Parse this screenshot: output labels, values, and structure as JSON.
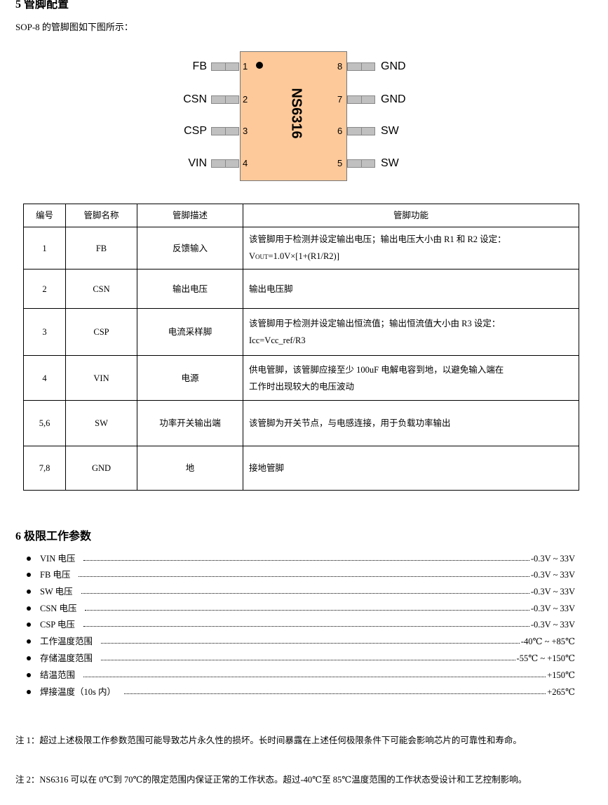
{
  "section5": {
    "title": "5 管脚配置",
    "intro": "SOP-8 的管脚图如下图所示："
  },
  "chip": {
    "name": "NS6316",
    "body_color": "#fdc99a",
    "left_pins": [
      {
        "num": "1",
        "label": "FB"
      },
      {
        "num": "2",
        "label": "CSN"
      },
      {
        "num": "3",
        "label": "CSP"
      },
      {
        "num": "4",
        "label": "VIN"
      }
    ],
    "right_pins": [
      {
        "num": "8",
        "label": "GND"
      },
      {
        "num": "7",
        "label": "GND"
      },
      {
        "num": "6",
        "label": "SW"
      },
      {
        "num": "5",
        "label": "SW"
      }
    ]
  },
  "table": {
    "headers": [
      "编号",
      "管脚名称",
      "管脚描述",
      "管脚功能"
    ],
    "rows": [
      {
        "num": "1",
        "name": "FB",
        "desc": "反馈输入",
        "func": "该管脚用于检测并设定输出电压；输出电压大小由 R1 和 R2 设定：",
        "func2_v": "V",
        "func2_sub": "OUT",
        "func2_rest": "=1.0V×[1+(R1/R2)]"
      },
      {
        "num": "2",
        "name": "CSN",
        "desc": "输出电压",
        "func": "输出电压脚"
      },
      {
        "num": "3",
        "name": "CSP",
        "desc": "电流采样脚",
        "func": "该管脚用于检测并设定输出恒流值；输出恒流值大小由 R3 设定：",
        "func2": "Icc=Vcc_ref/R3"
      },
      {
        "num": "4",
        "name": "VIN",
        "desc": "电源",
        "func": "供电管脚，该管脚应接至少 100uF 电解电容到地，以避免输入端在",
        "func2": "工作时出现较大的电压波动"
      },
      {
        "num": "5,6",
        "name": "SW",
        "desc": "功率开关输出端",
        "func": "该管脚为开关节点，与电感连接，用于负载功率输出"
      },
      {
        "num": "7,8",
        "name": "GND",
        "desc": "地",
        "func": "接地管脚"
      }
    ]
  },
  "section6": {
    "title": "6 极限工作参数",
    "items": [
      {
        "label": "VIN 电压",
        "value": "-0.3V ~ 33V"
      },
      {
        "label": "FB 电压",
        "value": "-0.3V ~ 33V"
      },
      {
        "label": "SW 电压",
        "value": "-0.3V ~ 33V"
      },
      {
        "label": "CSN 电压",
        "value": "-0.3V ~ 33V"
      },
      {
        "label": "CSP 电压",
        "value": "-0.3V ~ 33V"
      },
      {
        "label": "工作温度范围",
        "value": "-40℃ ~ +85℃"
      },
      {
        "label": "存储温度范围",
        "value": "-55℃ ~ +150℃"
      },
      {
        "label": "结温范围",
        "value": "+150℃"
      },
      {
        "label": "焊接温度（10s 内）",
        "value": "+265℃"
      }
    ],
    "note1": "注 1：超过上述极限工作参数范围可能导致芯片永久性的损坏。长时间暴露在上述任何极限条件下可能会影响芯片的可靠性和寿命。",
    "note2": "注 2：NS6316 可以在 0℃到 70℃的限定范围内保证正常的工作状态。超过-40℃至 85℃温度范围的工作状态受设计和工艺控制影响。"
  }
}
